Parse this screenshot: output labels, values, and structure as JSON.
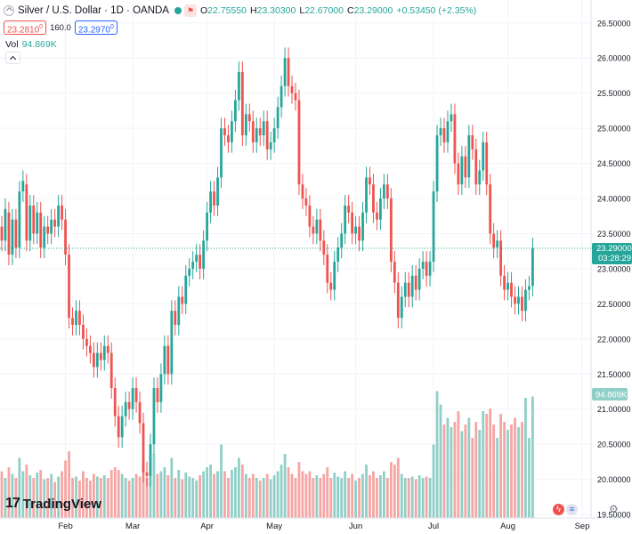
{
  "header": {
    "title": "Silver / U.S. Dollar · 1D · OANDA",
    "o_label": "O",
    "o_value": "22.75550",
    "h_label": "H",
    "h_value": "23.30300",
    "l_label": "L",
    "l_value": "22.67000",
    "c_label": "C",
    "c_value": "23.29000",
    "change": "+0.53450 (+2.35%)"
  },
  "prices": {
    "bid": "23.2810",
    "bid_sup": "0",
    "spread": "160.0",
    "ask": "23.2970",
    "ask_sup": "0"
  },
  "volume": {
    "label": "Vol",
    "value": "94.869K"
  },
  "price_tag": {
    "value": "23.29000",
    "countdown": "03:28:29"
  },
  "volume_tag": "94.869K",
  "branding": {
    "name": "TradingView"
  },
  "colors": {
    "up": "#26a69a",
    "down": "#ef5350",
    "up_vol": "#8fcfc7",
    "down_vol": "#f5a5a3",
    "axis_text": "#131722",
    "grid": "#f0f3fa"
  },
  "chart_data": {
    "type": "candlestick",
    "title": "Silver / U.S. Dollar · 1D · OANDA",
    "y_ticks": [
      "26.50000",
      "26.00000",
      "25.50000",
      "25.00000",
      "24.50000",
      "24.00000",
      "23.50000",
      "23.00000",
      "22.50000",
      "22.00000",
      "21.50000",
      "21.00000",
      "20.50000",
      "20.00000",
      "19.50000"
    ],
    "ylim": [
      19.45,
      26.7
    ],
    "x_ticks": [
      {
        "label": "Feb",
        "index": 18
      },
      {
        "label": "Mar",
        "index": 37
      },
      {
        "label": "Apr",
        "index": 58
      },
      {
        "label": "May",
        "index": 77
      },
      {
        "label": "Jun",
        "index": 100
      },
      {
        "label": "Jul",
        "index": 122
      },
      {
        "label": "Aug",
        "index": 143
      },
      {
        "label": "Sep",
        "index": 164
      }
    ],
    "n_slots": 167,
    "last_close": 23.29,
    "series": [
      {
        "o": 23.6,
        "c": 23.4,
        "v": 0.35
      },
      {
        "o": 23.4,
        "c": 23.85,
        "v": 0.3
      },
      {
        "o": 23.8,
        "c": 23.2,
        "v": 0.38
      },
      {
        "o": 23.2,
        "c": 23.7,
        "v": 0.33
      },
      {
        "o": 23.7,
        "c": 23.3,
        "v": 0.3
      },
      {
        "o": 23.3,
        "c": 24.1,
        "v": 0.45
      },
      {
        "o": 24.1,
        "c": 24.25,
        "v": 0.35
      },
      {
        "o": 24.2,
        "c": 23.4,
        "v": 0.4
      },
      {
        "o": 23.4,
        "c": 23.9,
        "v": 0.32
      },
      {
        "o": 23.9,
        "c": 23.5,
        "v": 0.3
      },
      {
        "o": 23.5,
        "c": 23.8,
        "v": 0.34
      },
      {
        "o": 23.8,
        "c": 23.3,
        "v": 0.36
      },
      {
        "o": 23.3,
        "c": 23.6,
        "v": 0.29
      },
      {
        "o": 23.6,
        "c": 23.5,
        "v": 0.3
      },
      {
        "o": 23.5,
        "c": 23.7,
        "v": 0.33
      },
      {
        "o": 23.7,
        "c": 23.6,
        "v": 0.27
      },
      {
        "o": 23.6,
        "c": 23.9,
        "v": 0.31
      },
      {
        "o": 23.9,
        "c": 23.7,
        "v": 0.35
      },
      {
        "o": 23.7,
        "c": 23.2,
        "v": 0.43
      },
      {
        "o": 23.2,
        "c": 22.3,
        "v": 0.5
      },
      {
        "o": 22.3,
        "c": 22.2,
        "v": 0.3
      },
      {
        "o": 22.2,
        "c": 22.4,
        "v": 0.31
      },
      {
        "o": 22.4,
        "c": 22.2,
        "v": 0.28
      },
      {
        "o": 22.2,
        "c": 22.0,
        "v": 0.35
      },
      {
        "o": 22.0,
        "c": 21.9,
        "v": 0.3
      },
      {
        "o": 21.9,
        "c": 21.8,
        "v": 0.28
      },
      {
        "o": 21.8,
        "c": 21.6,
        "v": 0.33
      },
      {
        "o": 21.6,
        "c": 21.8,
        "v": 0.31
      },
      {
        "o": 21.8,
        "c": 21.7,
        "v": 0.3
      },
      {
        "o": 21.7,
        "c": 21.9,
        "v": 0.32
      },
      {
        "o": 21.9,
        "c": 21.8,
        "v": 0.3
      },
      {
        "o": 21.8,
        "c": 21.3,
        "v": 0.36
      },
      {
        "o": 21.3,
        "c": 20.9,
        "v": 0.38
      },
      {
        "o": 20.9,
        "c": 20.6,
        "v": 0.36
      },
      {
        "o": 20.6,
        "c": 20.9,
        "v": 0.33
      },
      {
        "o": 20.9,
        "c": 21.1,
        "v": 0.3
      },
      {
        "o": 21.1,
        "c": 21.0,
        "v": 0.28
      },
      {
        "o": 21.0,
        "c": 21.3,
        "v": 0.3
      },
      {
        "o": 21.3,
        "c": 21.1,
        "v": 0.33
      },
      {
        "o": 21.1,
        "c": 20.8,
        "v": 0.31
      },
      {
        "o": 20.8,
        "c": 20.1,
        "v": 0.42
      },
      {
        "o": 20.1,
        "c": 20.05,
        "v": 0.3
      },
      {
        "o": 20.05,
        "c": 20.5,
        "v": 0.34
      },
      {
        "o": 20.5,
        "c": 21.3,
        "v": 0.48
      },
      {
        "o": 21.3,
        "c": 21.1,
        "v": 0.33
      },
      {
        "o": 21.1,
        "c": 21.5,
        "v": 0.35
      },
      {
        "o": 21.5,
        "c": 21.9,
        "v": 0.38
      },
      {
        "o": 21.9,
        "c": 21.5,
        "v": 0.32
      },
      {
        "o": 21.5,
        "c": 22.4,
        "v": 0.45
      },
      {
        "o": 22.4,
        "c": 22.2,
        "v": 0.3
      },
      {
        "o": 22.2,
        "c": 22.6,
        "v": 0.36
      },
      {
        "o": 22.6,
        "c": 22.5,
        "v": 0.29
      },
      {
        "o": 22.5,
        "c": 22.9,
        "v": 0.34
      },
      {
        "o": 22.9,
        "c": 23.0,
        "v": 0.31
      },
      {
        "o": 23.0,
        "c": 23.1,
        "v": 0.3
      },
      {
        "o": 23.1,
        "c": 23.2,
        "v": 0.28
      },
      {
        "o": 23.2,
        "c": 23.0,
        "v": 0.32
      },
      {
        "o": 23.0,
        "c": 23.4,
        "v": 0.35
      },
      {
        "o": 23.4,
        "c": 23.8,
        "v": 0.38
      },
      {
        "o": 23.8,
        "c": 24.1,
        "v": 0.4
      },
      {
        "o": 24.1,
        "c": 23.9,
        "v": 0.33
      },
      {
        "o": 23.9,
        "c": 24.3,
        "v": 0.35
      },
      {
        "o": 24.3,
        "c": 25.0,
        "v": 0.55
      },
      {
        "o": 25.0,
        "c": 24.9,
        "v": 0.35
      },
      {
        "o": 24.9,
        "c": 24.8,
        "v": 0.3
      },
      {
        "o": 24.8,
        "c": 25.1,
        "v": 0.36
      },
      {
        "o": 25.1,
        "c": 25.4,
        "v": 0.38
      },
      {
        "o": 25.4,
        "c": 25.8,
        "v": 0.45
      },
      {
        "o": 25.8,
        "c": 24.9,
        "v": 0.4
      },
      {
        "o": 24.9,
        "c": 25.2,
        "v": 0.33
      },
      {
        "o": 25.2,
        "c": 25.1,
        "v": 0.3
      },
      {
        "o": 25.1,
        "c": 24.8,
        "v": 0.33
      },
      {
        "o": 24.8,
        "c": 25.0,
        "v": 0.3
      },
      {
        "o": 25.0,
        "c": 24.9,
        "v": 0.28
      },
      {
        "o": 24.9,
        "c": 25.1,
        "v": 0.3
      },
      {
        "o": 25.1,
        "c": 24.7,
        "v": 0.33
      },
      {
        "o": 24.7,
        "c": 24.8,
        "v": 0.29
      },
      {
        "o": 24.8,
        "c": 25.0,
        "v": 0.32
      },
      {
        "o": 25.0,
        "c": 25.3,
        "v": 0.35
      },
      {
        "o": 25.3,
        "c": 25.6,
        "v": 0.4
      },
      {
        "o": 25.6,
        "c": 26.0,
        "v": 0.48
      },
      {
        "o": 26.0,
        "c": 25.6,
        "v": 0.38
      },
      {
        "o": 25.6,
        "c": 25.5,
        "v": 0.33
      },
      {
        "o": 25.5,
        "c": 25.4,
        "v": 0.3
      },
      {
        "o": 25.4,
        "c": 24.2,
        "v": 0.42
      },
      {
        "o": 24.2,
        "c": 24.0,
        "v": 0.35
      },
      {
        "o": 24.0,
        "c": 23.9,
        "v": 0.33
      },
      {
        "o": 23.9,
        "c": 23.6,
        "v": 0.35
      },
      {
        "o": 23.6,
        "c": 23.5,
        "v": 0.3
      },
      {
        "o": 23.5,
        "c": 23.7,
        "v": 0.32
      },
      {
        "o": 23.7,
        "c": 23.4,
        "v": 0.3
      },
      {
        "o": 23.4,
        "c": 23.2,
        "v": 0.33
      },
      {
        "o": 23.2,
        "c": 22.8,
        "v": 0.38
      },
      {
        "o": 22.8,
        "c": 22.7,
        "v": 0.3
      },
      {
        "o": 22.7,
        "c": 23.1,
        "v": 0.34
      },
      {
        "o": 23.1,
        "c": 23.3,
        "v": 0.31
      },
      {
        "o": 23.3,
        "c": 23.5,
        "v": 0.3
      },
      {
        "o": 23.5,
        "c": 23.9,
        "v": 0.35
      },
      {
        "o": 23.9,
        "c": 23.8,
        "v": 0.3
      },
      {
        "o": 23.8,
        "c": 23.5,
        "v": 0.33
      },
      {
        "o": 23.5,
        "c": 23.6,
        "v": 0.28
      },
      {
        "o": 23.6,
        "c": 23.4,
        "v": 0.3
      },
      {
        "o": 23.4,
        "c": 23.8,
        "v": 0.33
      },
      {
        "o": 23.8,
        "c": 24.3,
        "v": 0.4
      },
      {
        "o": 24.3,
        "c": 24.2,
        "v": 0.32
      },
      {
        "o": 24.2,
        "c": 23.8,
        "v": 0.35
      },
      {
        "o": 23.8,
        "c": 23.7,
        "v": 0.3
      },
      {
        "o": 23.7,
        "c": 24.0,
        "v": 0.32
      },
      {
        "o": 24.0,
        "c": 24.2,
        "v": 0.35
      },
      {
        "o": 24.2,
        "c": 24.0,
        "v": 0.3
      },
      {
        "o": 24.0,
        "c": 23.1,
        "v": 0.42
      },
      {
        "o": 23.1,
        "c": 22.8,
        "v": 0.4
      },
      {
        "o": 22.8,
        "c": 22.3,
        "v": 0.45
      },
      {
        "o": 22.3,
        "c": 22.6,
        "v": 0.33
      },
      {
        "o": 22.6,
        "c": 22.8,
        "v": 0.3
      },
      {
        "o": 22.8,
        "c": 22.6,
        "v": 0.3
      },
      {
        "o": 22.6,
        "c": 22.9,
        "v": 0.31
      },
      {
        "o": 22.9,
        "c": 22.7,
        "v": 0.29
      },
      {
        "o": 22.7,
        "c": 23.0,
        "v": 0.32
      },
      {
        "o": 23.0,
        "c": 23.1,
        "v": 0.3
      },
      {
        "o": 23.1,
        "c": 22.9,
        "v": 0.31
      },
      {
        "o": 22.9,
        "c": 23.1,
        "v": 0.3
      },
      {
        "o": 23.1,
        "c": 24.1,
        "v": 0.55
      },
      {
        "o": 24.1,
        "c": 24.9,
        "v": 0.95
      },
      {
        "o": 24.9,
        "c": 25.0,
        "v": 0.85
      },
      {
        "o": 25.0,
        "c": 24.8,
        "v": 0.7
      },
      {
        "o": 24.8,
        "c": 25.1,
        "v": 0.75
      },
      {
        "o": 25.1,
        "c": 25.2,
        "v": 0.68
      },
      {
        "o": 25.2,
        "c": 24.5,
        "v": 0.72
      },
      {
        "o": 24.5,
        "c": 24.2,
        "v": 0.8
      },
      {
        "o": 24.2,
        "c": 24.6,
        "v": 0.65
      },
      {
        "o": 24.6,
        "c": 24.3,
        "v": 0.7
      },
      {
        "o": 24.3,
        "c": 24.9,
        "v": 0.75
      },
      {
        "o": 24.9,
        "c": 24.7,
        "v": 0.6
      },
      {
        "o": 24.7,
        "c": 24.2,
        "v": 0.72
      },
      {
        "o": 24.2,
        "c": 24.4,
        "v": 0.66
      },
      {
        "o": 24.4,
        "c": 24.8,
        "v": 0.8
      },
      {
        "o": 24.8,
        "c": 24.2,
        "v": 0.78
      },
      {
        "o": 24.2,
        "c": 23.5,
        "v": 0.82
      },
      {
        "o": 23.5,
        "c": 23.3,
        "v": 0.7
      },
      {
        "o": 23.3,
        "c": 23.4,
        "v": 0.6
      },
      {
        "o": 23.4,
        "c": 22.9,
        "v": 0.78
      },
      {
        "o": 22.9,
        "c": 22.7,
        "v": 0.72
      },
      {
        "o": 22.7,
        "c": 22.8,
        "v": 0.66
      },
      {
        "o": 22.8,
        "c": 22.6,
        "v": 0.7
      },
      {
        "o": 22.6,
        "c": 22.5,
        "v": 0.75
      },
      {
        "o": 22.5,
        "c": 22.6,
        "v": 0.68
      },
      {
        "o": 22.6,
        "c": 22.4,
        "v": 0.72
      },
      {
        "o": 22.4,
        "c": 22.7,
        "v": 0.9
      },
      {
        "o": 22.7,
        "c": 22.75,
        "v": 0.6
      },
      {
        "o": 22.7555,
        "c": 23.29,
        "v": 0.91
      }
    ]
  }
}
